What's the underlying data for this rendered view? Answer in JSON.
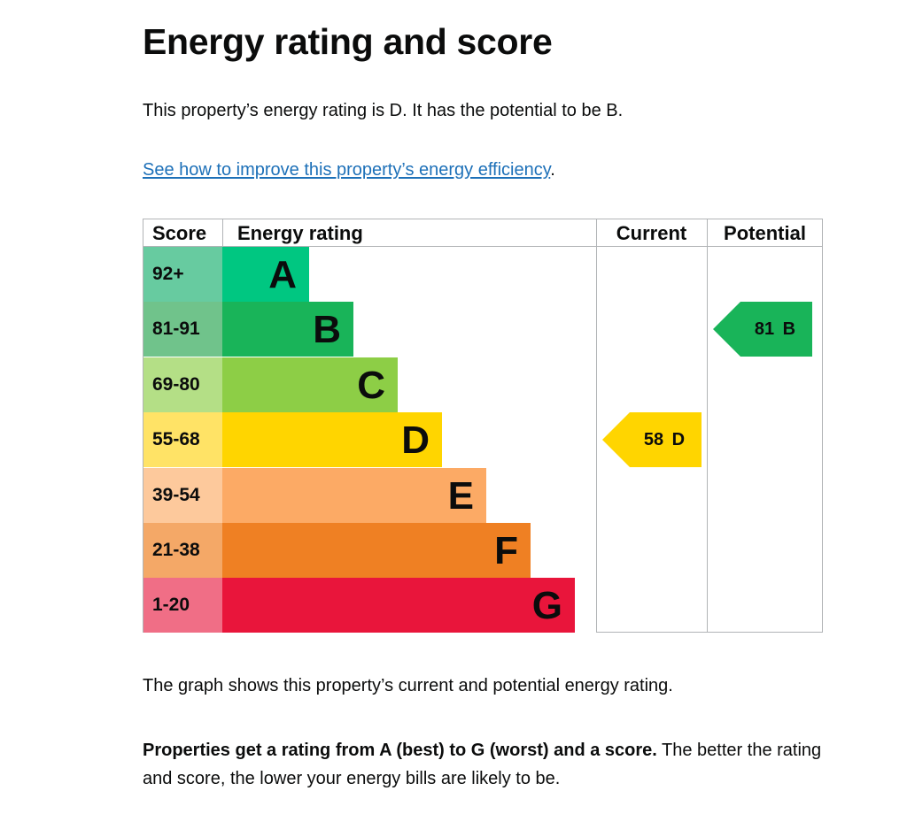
{
  "page": {
    "title": "Energy rating and score",
    "intro": "This property’s energy rating is D. It has the potential to be B.",
    "improve_link": "See how to improve this property’s energy efficiency",
    "improve_suffix": ".",
    "graph_note": "The graph shows this property’s current and potential energy rating.",
    "explain_bold": "Properties get a rating from A (best) to G (worst) and a score.",
    "explain_rest": " The better the rating and score, the lower your energy bills are likely to be."
  },
  "chart_data": {
    "type": "table",
    "headers": {
      "score": "Score",
      "rating": "Energy rating",
      "current": "Current",
      "potential": "Potential"
    },
    "bands": [
      {
        "letter": "A",
        "range": "92+",
        "color": "#00c781",
        "score_bg": "#67cba0"
      },
      {
        "letter": "B",
        "range": "81-91",
        "color": "#19b459",
        "score_bg": "#70c38b"
      },
      {
        "letter": "C",
        "range": "69-80",
        "color": "#8dce46",
        "score_bg": "#b4df86"
      },
      {
        "letter": "D",
        "range": "55-68",
        "color": "#ffd500",
        "score_bg": "#ffe366"
      },
      {
        "letter": "E",
        "range": "39-54",
        "color": "#fcaa65",
        "score_bg": "#fdc99c"
      },
      {
        "letter": "F",
        "range": "21-38",
        "color": "#ef8023",
        "score_bg": "#f4a867"
      },
      {
        "letter": "G",
        "range": "1-20",
        "color": "#e9153b",
        "score_bg": "#f06e86"
      }
    ],
    "current": {
      "score": 58,
      "band": "D",
      "label": "58 D",
      "color": "#ffd500"
    },
    "potential": {
      "score": 81,
      "band": "B",
      "label": "81 B",
      "color": "#19b459"
    }
  }
}
